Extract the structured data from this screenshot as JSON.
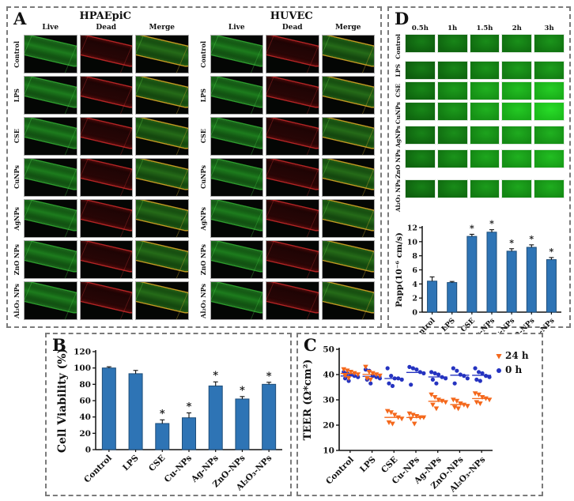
{
  "panel_a": {
    "label": "A",
    "blocks": [
      {
        "title": "HPAEpiC"
      },
      {
        "title": "HUVEC"
      }
    ],
    "columns": [
      "Live",
      "Dead",
      "Merge"
    ],
    "rows": [
      "Control",
      "LPS",
      "CSE",
      "CuNPs",
      "AgNPs",
      "ZnO NPs",
      "Al₂O₃ NPs"
    ]
  },
  "panel_b": {
    "label": "B"
  },
  "panel_c": {
    "label": "C",
    "legend": [
      {
        "label": "24 h",
        "marker": "triangle-down",
        "color": "#f4681c"
      },
      {
        "label": "0 h",
        "marker": "circle",
        "color": "#2533c0"
      }
    ]
  },
  "panel_d": {
    "label": "D",
    "grid": {
      "columns": [
        "0.5h",
        "1h",
        "1.5h",
        "2h",
        "3h"
      ],
      "rows": [
        "Control",
        "LPS",
        "CSE",
        "CuNPs",
        "AgNPs",
        "ZnO NPs",
        "Al₂O₃ NPs"
      ],
      "relative_intensity": [
        [
          0.28,
          0.32,
          0.36,
          0.38,
          0.4
        ],
        [
          0.28,
          0.33,
          0.4,
          0.44,
          0.45
        ],
        [
          0.33,
          0.44,
          0.55,
          0.62,
          0.7
        ],
        [
          0.33,
          0.43,
          0.55,
          0.68,
          0.78
        ],
        [
          0.31,
          0.37,
          0.48,
          0.52,
          0.55
        ],
        [
          0.32,
          0.4,
          0.5,
          0.55,
          0.62
        ],
        [
          0.3,
          0.36,
          0.44,
          0.5,
          0.53
        ]
      ]
    }
  },
  "chart_data": [
    {
      "id": "cell-viability",
      "panel": "B",
      "type": "bar",
      "categories": [
        "Control",
        "LPS",
        "CSE",
        "Cu-NPs",
        "Ag-NPs",
        "ZnO-NPs",
        "Al₂O₃-NPs"
      ],
      "values": [
        100,
        93,
        32,
        39,
        78,
        62,
        80
      ],
      "errors": [
        1.5,
        4,
        4.5,
        6,
        5,
        3,
        2.5
      ],
      "significance": [
        "",
        "",
        "*",
        "*",
        "*",
        "*",
        "*"
      ],
      "sig_marker": "*",
      "ylabel": "Cell Viability (%)",
      "ylim": [
        0,
        120
      ],
      "ytick_step": 20,
      "grid": false,
      "colors": {
        "bar": "#2e74b5",
        "bar_border": "#1f4e79",
        "axis": "#111111"
      }
    },
    {
      "id": "teer",
      "panel": "C",
      "type": "scatter",
      "categories": [
        "Control",
        "LPS",
        "CSE",
        "Cu-NPs",
        "Ag-NPs",
        "ZnO-NPs",
        "Al₂O₃-NPs"
      ],
      "ylabel": "TEER (Ω*cm²)",
      "ylim": [
        10,
        50
      ],
      "ytick_step": 10,
      "grid": false,
      "legend_position": "top-right",
      "series": [
        {
          "name": "24 h",
          "marker": "triangle-down",
          "color": "#f4681c",
          "groups": [
            [
              42,
              41.5,
              41,
              40.5,
              40,
              39.5,
              38.5
            ],
            [
              43,
              41,
              40.5,
              40,
              39.5,
              38.5,
              38
            ],
            [
              25.5,
              25,
              24,
              23,
              22.5,
              21,
              20.5
            ],
            [
              24.5,
              24,
              23.5,
              23,
              23,
              22.5,
              20.5
            ],
            [
              32,
              31,
              30,
              29.5,
              29,
              28,
              26.5
            ],
            [
              30,
              29.5,
              28.5,
              28,
              27.5,
              27,
              26.5
            ],
            [
              32.5,
              32,
              31,
              30.5,
              30,
              29,
              28.5
            ]
          ]
        },
        {
          "name": "0 h",
          "marker": "circle",
          "color": "#2533c0",
          "groups": [
            [
              41,
              40.5,
              40,
              39.5,
              39,
              38.5,
              37.5
            ],
            [
              42,
              41.5,
              39.5,
              39,
              38.5,
              38,
              36.5
            ],
            [
              42.5,
              39.5,
              38.5,
              38.5,
              38,
              36.5,
              35.5
            ],
            [
              43,
              42.5,
              42,
              41,
              40.5,
              36
            ],
            [
              41,
              40.5,
              40,
              39,
              38.5,
              38,
              36.5
            ],
            [
              42.5,
              41.5,
              40,
              39.5,
              38.5,
              36.5
            ],
            [
              42.5,
              41,
              40.5,
              39.5,
              39,
              38,
              37.5
            ]
          ]
        }
      ]
    },
    {
      "id": "papp",
      "panel": "D",
      "type": "bar",
      "categories": [
        "Control",
        "LPS",
        "CSE",
        "Cu-NPs",
        "Ag-NPs",
        "ZnO-NPs",
        "Al₂O₃-NPs"
      ],
      "values": [
        4.4,
        4.2,
        10.75,
        11.35,
        8.65,
        9.2,
        7.45
      ],
      "errors": [
        0.6,
        0.15,
        0.3,
        0.35,
        0.35,
        0.35,
        0.3
      ],
      "significance": [
        "",
        "",
        "*",
        "*",
        "*",
        "*",
        "*"
      ],
      "sig_marker": "*",
      "ylabel": "Papp(10⁻⁶ cm/s)",
      "ylim": [
        0,
        12
      ],
      "ytick_step": 2,
      "grid": false,
      "colors": {
        "bar": "#2e74b5",
        "bar_border": "#1f4e79",
        "axis": "#111111"
      }
    }
  ]
}
